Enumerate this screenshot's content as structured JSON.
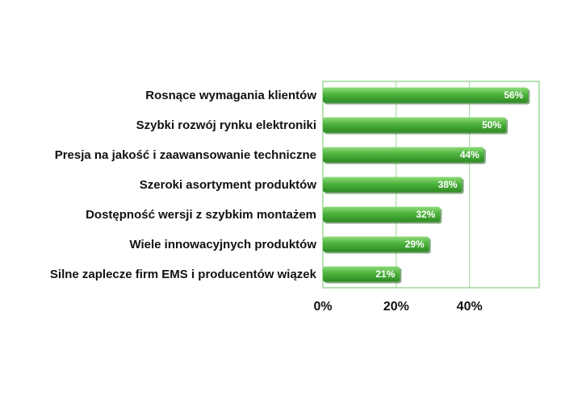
{
  "chart_data": {
    "type": "bar",
    "orientation": "horizontal",
    "categories": [
      "Rosnące wymagania klientów",
      "Szybki rozwój rynku elektroniki",
      "Presja na jakość i zaawansowanie techniczne",
      "Szeroki asortyment produktów",
      "Dostępność wersji z szybkim montażem",
      "Wiele innowacyjnych produktów",
      "Silne zaplecze firm EMS i producentów wiązek"
    ],
    "values": [
      56,
      50,
      44,
      38,
      32,
      29,
      21
    ],
    "value_labels": [
      "56%",
      "50%",
      "44%",
      "38%",
      "32%",
      "29%",
      "21%"
    ],
    "x_ticks": [
      0,
      20,
      40
    ],
    "x_tick_labels": [
      "0%",
      "20%",
      "40%"
    ],
    "xlim": [
      0,
      59
    ],
    "grid": true,
    "title": "",
    "xlabel": "",
    "ylabel": "",
    "colors": {
      "bar_light": "#8fdc7a",
      "bar": "#4db33d",
      "bar_dark": "#2e8a24",
      "grid": "#9fd59a",
      "frame": "#9fd59a"
    }
  }
}
